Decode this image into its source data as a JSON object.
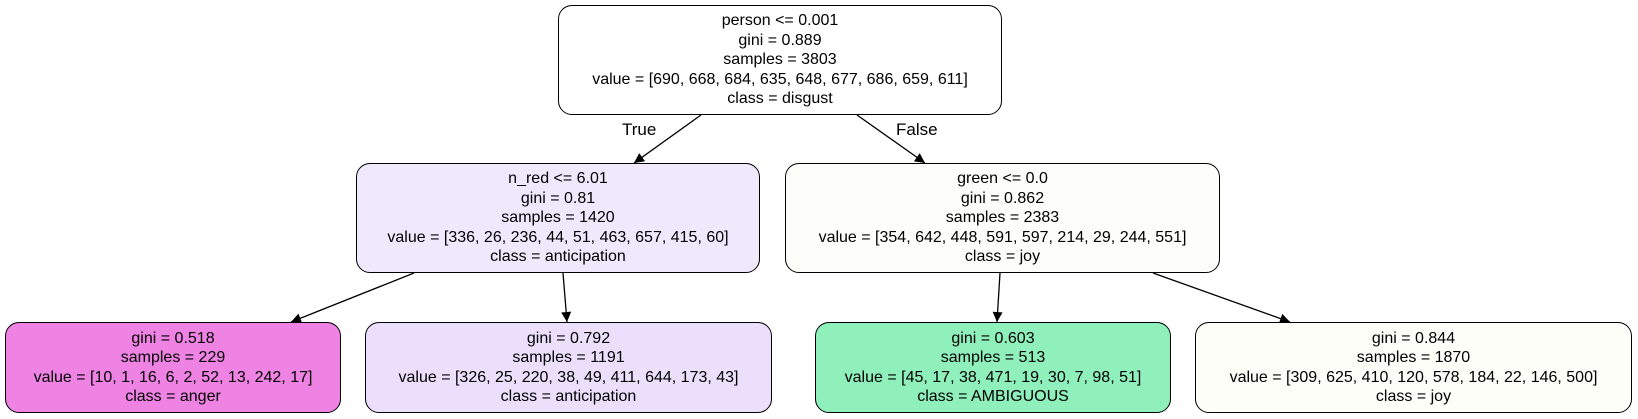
{
  "tree": {
    "nodes": [
      {
        "id": "root",
        "lines": [
          "person <= 0.001",
          "gini = 0.889",
          "samples = 3803",
          "value = [690, 668, 684, 635, 648, 677, 686, 659, 611]",
          "class = disgust"
        ],
        "fill": "#ffffff"
      },
      {
        "id": "n1",
        "lines": [
          "n_red <= 6.01",
          "gini = 0.81",
          "samples = 1420",
          "value = [336, 26, 236, 44, 51, 463, 657, 415, 60]",
          "class = anticipation"
        ],
        "fill": "#f0e8fc"
      },
      {
        "id": "n2",
        "lines": [
          "green <= 0.0",
          "gini = 0.862",
          "samples = 2383",
          "value = [354, 642, 448, 591, 597, 214, 29, 244, 551]",
          "class = joy"
        ],
        "fill": "#fdfefa"
      },
      {
        "id": "n3",
        "lines": [
          "gini = 0.518",
          "samples = 229",
          "value = [10, 1, 16, 6, 2, 52, 13, 242, 17]",
          "class = anger"
        ],
        "fill": "#ef83e4"
      },
      {
        "id": "n4",
        "lines": [
          "gini = 0.792",
          "samples = 1191",
          "value = [326, 25, 220, 38, 49, 411, 644, 173, 43]",
          "class = anticipation"
        ],
        "fill": "#ebdffb"
      },
      {
        "id": "n5",
        "lines": [
          "gini = 0.603",
          "samples = 513",
          "value = [45, 17, 38, 471, 19, 30, 7, 98, 51]",
          "class = AMBIGUOUS"
        ],
        "fill": "#8ff0bb"
      },
      {
        "id": "n6",
        "lines": [
          "gini = 0.844",
          "samples = 1870",
          "value = [309, 625, 410, 120, 578, 184, 22, 146, 500]",
          "class = joy"
        ],
        "fill": "#fdfef8"
      }
    ],
    "edges": [
      {
        "from": "root",
        "to": "n1",
        "label": "True"
      },
      {
        "from": "root",
        "to": "n2",
        "label": "False"
      },
      {
        "from": "n1",
        "to": "n3",
        "label": ""
      },
      {
        "from": "n1",
        "to": "n4",
        "label": ""
      },
      {
        "from": "n2",
        "to": "n5",
        "label": ""
      },
      {
        "from": "n2",
        "to": "n6",
        "label": ""
      }
    ]
  }
}
